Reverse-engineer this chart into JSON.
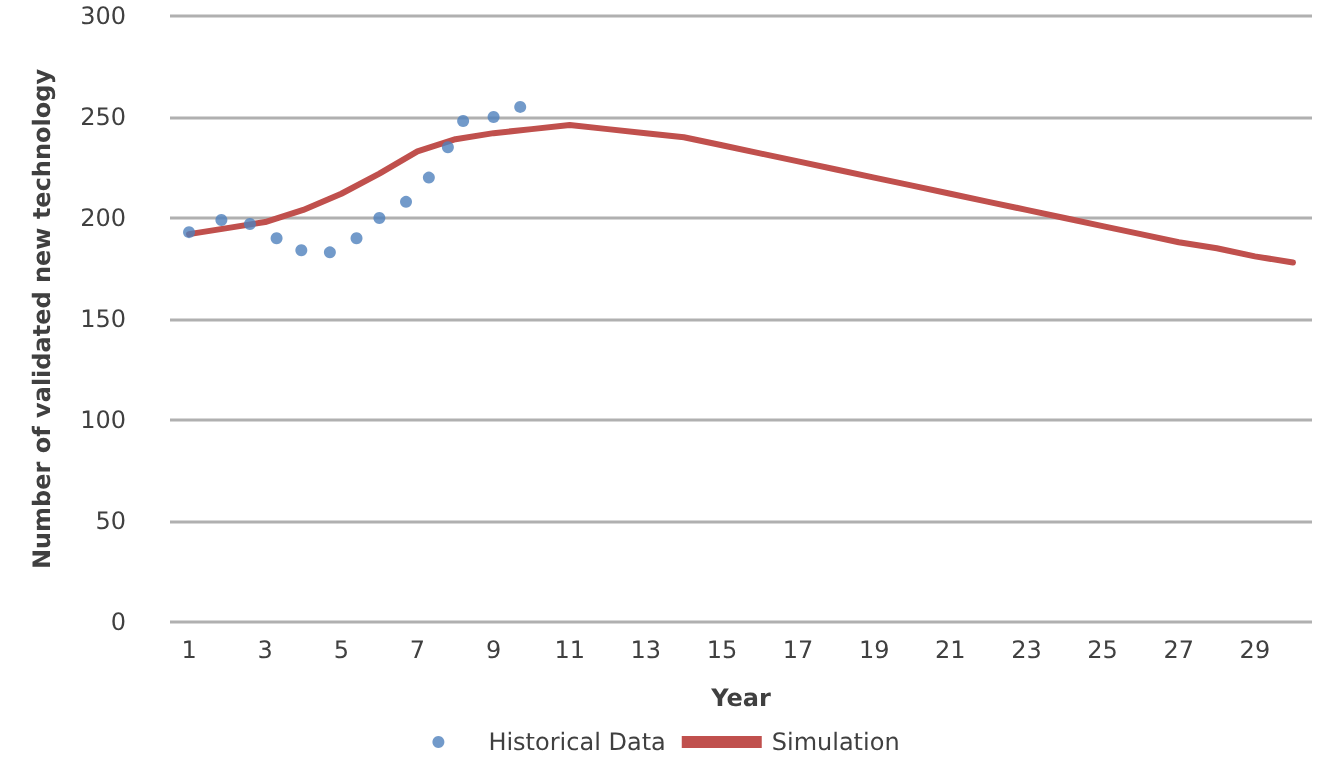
{
  "chart_data": {
    "type": "line",
    "xlabel": "Year",
    "ylabel": "Number of validated new technology",
    "xlim": [
      0.5,
      30.5
    ],
    "xticks": [
      1,
      3,
      5,
      7,
      9,
      11,
      13,
      15,
      17,
      19,
      21,
      23,
      25,
      27,
      29
    ],
    "ylim": [
      0,
      300
    ],
    "yticks": [
      0,
      50,
      100,
      150,
      200,
      250,
      300
    ],
    "grid": "y",
    "legend": "bottom",
    "series": [
      {
        "name": "Historical Data",
        "type": "scatter",
        "marker": "circle",
        "color": "#4f81bd",
        "x": [
          1,
          1.85,
          2.6,
          3.3,
          3.95,
          4.7,
          5.4,
          6.0,
          6.7,
          7.3,
          7.8,
          8.2,
          9.0,
          9.7
        ],
        "values": [
          193,
          199,
          197,
          190,
          184,
          183,
          190,
          200,
          208,
          220,
          235,
          248,
          250,
          255
        ]
      },
      {
        "name": "Simulation",
        "color": "#c0504d",
        "x": [
          1,
          2,
          3,
          4,
          5,
          6,
          7,
          8,
          9,
          10,
          11,
          12,
          13,
          14,
          15,
          16,
          17,
          18,
          19,
          20,
          21,
          22,
          23,
          24,
          25,
          26,
          27,
          28,
          29,
          30
        ],
        "values": [
          192,
          195,
          198,
          204,
          212,
          222,
          233,
          239,
          242,
          244,
          246,
          244,
          242,
          240,
          236,
          232,
          228,
          224,
          220,
          216,
          212,
          208,
          204,
          200,
          196,
          192,
          188,
          185,
          181,
          178
        ]
      }
    ]
  }
}
